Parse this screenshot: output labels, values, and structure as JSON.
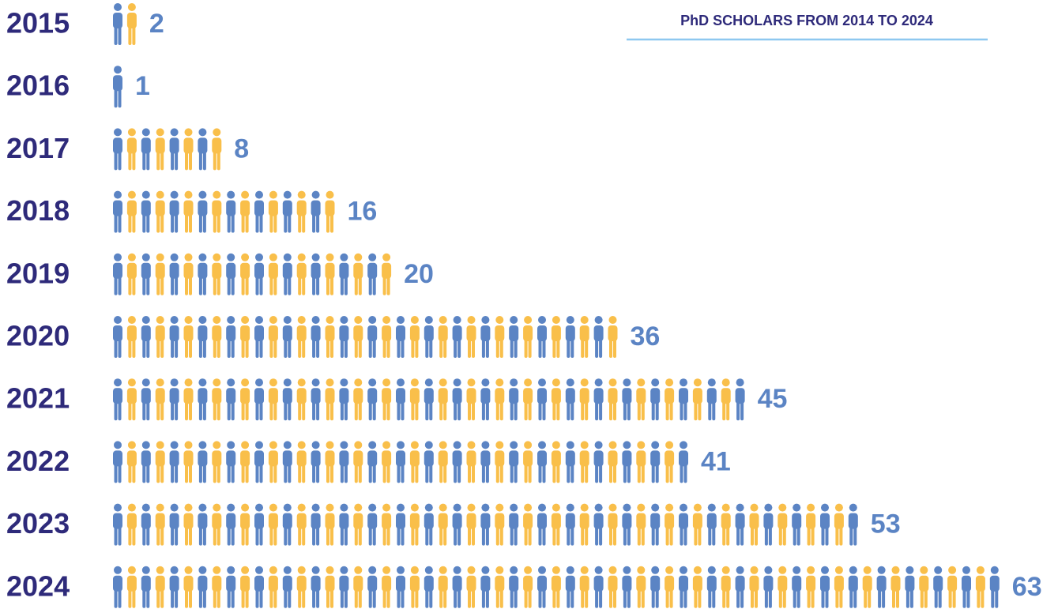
{
  "chart_data": {
    "type": "pictogram",
    "title": "PhD SCHOLARS FROM 2014 TO 2024",
    "categories": [
      "2015",
      "2016",
      "2017",
      "2018",
      "2019",
      "2020",
      "2021",
      "2022",
      "2023",
      "2024"
    ],
    "values": [
      2,
      1,
      8,
      16,
      20,
      36,
      45,
      41,
      53,
      63
    ],
    "colors": [
      "#5b84c4",
      "#f9bf4a"
    ]
  }
}
